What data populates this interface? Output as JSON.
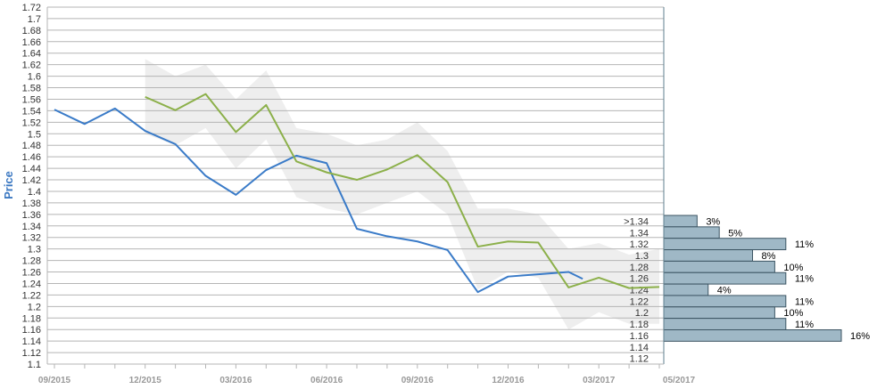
{
  "chart_data": {
    "type": "line",
    "ylabel": "Price",
    "xlabel": "",
    "ylim": [
      1.1,
      1.72
    ],
    "y_ticks": [
      "1.1",
      "1.12",
      "1.14",
      "1.16",
      "1.18",
      "1.2",
      "1.22",
      "1.24",
      "1.26",
      "1.28",
      "1.3",
      "1.32",
      "1.34",
      "1.36",
      "1.38",
      "1.4",
      "1.42",
      "1.44",
      "1.46",
      "1.48",
      "1.5",
      "1.52",
      "1.54",
      "1.56",
      "1.58",
      "1.6",
      "1.62",
      "1.64",
      "1.66",
      "1.68",
      "1.7",
      "1.72"
    ],
    "x_ticks": [
      "09/2015",
      "12/2015",
      "03/2016",
      "06/2016",
      "09/2016",
      "12/2016",
      "03/2017",
      "05/2017"
    ],
    "grid": true,
    "series": [
      {
        "color": "#3a7bc8",
        "x": [
          "2015-09",
          "2015-10",
          "2015-11",
          "2015-12",
          "2016-01",
          "2016-02",
          "2016-03",
          "2016-04",
          "2016-05",
          "2016-06",
          "2016-07",
          "2016-08",
          "2016-09",
          "2016-10",
          "2016-11",
          "2016-12",
          "2017-01",
          "2017-02",
          "2017-02-15"
        ],
        "values": [
          1.542,
          1.517,
          1.544,
          1.505,
          1.482,
          1.427,
          1.394,
          1.437,
          1.462,
          1.449,
          1.335,
          1.322,
          1.313,
          1.298,
          1.225,
          1.252,
          1.256,
          1.26,
          1.248
        ]
      },
      {
        "color": "#8cb04a",
        "x": [
          "2015-12",
          "2016-01",
          "2016-02",
          "2016-03",
          "2016-04",
          "2016-05",
          "2016-06",
          "2016-07",
          "2016-08",
          "2016-09",
          "2016-10",
          "2016-11",
          "2016-12",
          "2017-01",
          "2017-02",
          "2017-03",
          "2017-04",
          "2017-05"
        ],
        "values": [
          1.564,
          1.541,
          1.569,
          1.503,
          1.55,
          1.452,
          1.433,
          1.42,
          1.438,
          1.463,
          1.416,
          1.304,
          1.313,
          1.311,
          1.233,
          1.25,
          1.232,
          1.234
        ]
      }
    ],
    "band": {
      "color": "#eeeeee",
      "x": [
        "2015-12",
        "2016-01",
        "2016-02",
        "2016-03",
        "2016-04",
        "2016-05",
        "2016-06",
        "2016-07",
        "2016-08",
        "2016-09",
        "2016-10",
        "2016-11",
        "2016-12",
        "2017-01",
        "2017-02",
        "2017-03",
        "2017-04",
        "2017-05"
      ],
      "upper": [
        1.63,
        1.6,
        1.62,
        1.56,
        1.61,
        1.51,
        1.5,
        1.48,
        1.49,
        1.52,
        1.47,
        1.37,
        1.37,
        1.36,
        1.3,
        1.31,
        1.29,
        1.3
      ],
      "lower": [
        1.5,
        1.48,
        1.51,
        1.44,
        1.49,
        1.39,
        1.37,
        1.36,
        1.38,
        1.4,
        1.36,
        1.23,
        1.26,
        1.25,
        1.16,
        1.19,
        1.17,
        1.17
      ]
    },
    "distribution": {
      "color": "#9fb8c6",
      "bins": [
        {
          "label": ">1.34",
          "percent": 3,
          "pct_label": "3%"
        },
        {
          "label": "1.34",
          "percent": 5,
          "pct_label": "5%"
        },
        {
          "label": "1.32",
          "percent": 11,
          "pct_label": "11%"
        },
        {
          "label": "1.3",
          "percent": 8,
          "pct_label": "8%"
        },
        {
          "label": "1.28",
          "percent": 10,
          "pct_label": "10%"
        },
        {
          "label": "1.26",
          "percent": 11,
          "pct_label": "11%"
        },
        {
          "label": "1.24",
          "percent": 4,
          "pct_label": "4%"
        },
        {
          "label": "1.22",
          "percent": 11,
          "pct_label": "11%"
        },
        {
          "label": "1.2",
          "percent": 10,
          "pct_label": "10%"
        },
        {
          "label": "1.18",
          "percent": 11,
          "pct_label": "11%"
        },
        {
          "label": "1.16",
          "percent": 16,
          "pct_label": "16%"
        },
        {
          "label": "1.14",
          "percent": 0,
          "pct_label": ""
        },
        {
          "label": "1.12",
          "percent": 0,
          "pct_label": ""
        }
      ]
    }
  }
}
